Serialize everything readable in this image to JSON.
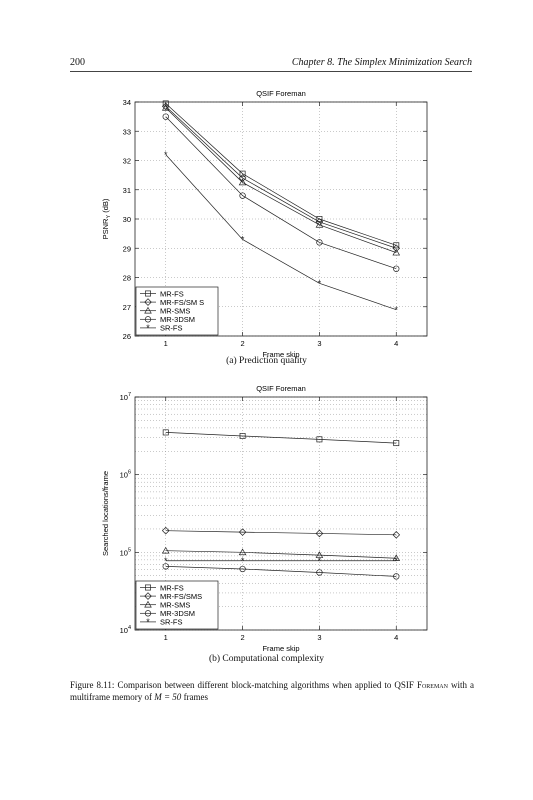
{
  "header": {
    "page_number": "200",
    "chapter_title": "Chapter 8.  The Simplex Minimization Search"
  },
  "figure": {
    "label": "Figure 8.11:",
    "text": "Comparison between different block-matching algorithms when applied to QSIF",
    "sequence_name": "Foreman",
    "text_after": "with a multiframe memory of",
    "math": "M = 50",
    "text_end": "frames"
  },
  "chart_data": [
    {
      "type": "line",
      "title": "QSIF Foreman",
      "caption": "(a) Prediction quality",
      "xlabel": "Frame skip",
      "ylabel": "PSNR_Y (dB)",
      "ylabel_main": "PSNR",
      "ylabel_sub": "Y",
      "ylabel_unit": " (dB)",
      "x": [
        1,
        2,
        3,
        4
      ],
      "xlim": [
        0.6,
        4.4
      ],
      "ylim": [
        26,
        34
      ],
      "yticks": [
        26,
        27,
        28,
        29,
        30,
        31,
        32,
        33,
        34
      ],
      "xticks": [
        1,
        2,
        3,
        4
      ],
      "yscale": "linear",
      "grid": true,
      "legend_position": "bottom-left",
      "series": [
        {
          "name": "MR-FS",
          "marker": "square",
          "values": [
            33.95,
            31.55,
            30.0,
            29.1
          ]
        },
        {
          "name": "MR-FS/SM S",
          "marker": "diamond",
          "values": [
            33.85,
            31.4,
            29.9,
            29.0
          ]
        },
        {
          "name": "MR-SMS",
          "marker": "triangle",
          "values": [
            33.8,
            31.25,
            29.8,
            28.85
          ]
        },
        {
          "name": "MR-3DSM",
          "marker": "circle",
          "values": [
            33.5,
            30.8,
            29.2,
            28.3
          ]
        },
        {
          "name": "SR-FS",
          "marker": "star",
          "values": [
            32.2,
            29.3,
            27.8,
            26.9
          ]
        }
      ]
    },
    {
      "type": "line",
      "title": "QSIF Foreman",
      "caption": "(b) Computational complexity",
      "xlabel": "Frame skip",
      "ylabel": "Searched locations/frame",
      "x": [
        1,
        2,
        3,
        4
      ],
      "xlim": [
        0.6,
        4.4
      ],
      "ylim": [
        10000,
        10000000
      ],
      "yscale": "log",
      "yticks": [
        {
          "value": 10000,
          "base": "10",
          "exp": "4"
        },
        {
          "value": 100000,
          "base": "10",
          "exp": "5"
        },
        {
          "value": 1000000,
          "base": "10",
          "exp": "6"
        },
        {
          "value": 10000000,
          "base": "10",
          "exp": "7"
        }
      ],
      "xticks": [
        1,
        2,
        3,
        4
      ],
      "grid": true,
      "legend_position": "bottom-left",
      "series": [
        {
          "name": "MR-FS",
          "marker": "square",
          "values": [
            3500000,
            3150000,
            2850000,
            2550000
          ]
        },
        {
          "name": "MR-FS/SMS",
          "marker": "diamond",
          "values": [
            190000,
            182000,
            175000,
            168000
          ]
        },
        {
          "name": "MR-SMS",
          "marker": "triangle",
          "values": [
            105000,
            100000,
            92000,
            84000
          ]
        },
        {
          "name": "MR-3DSM",
          "marker": "circle",
          "values": [
            66000,
            61000,
            55000,
            49000
          ]
        },
        {
          "name": "SR-FS",
          "marker": "star",
          "values": [
            78000,
            78000,
            78000,
            78000
          ]
        }
      ]
    }
  ]
}
